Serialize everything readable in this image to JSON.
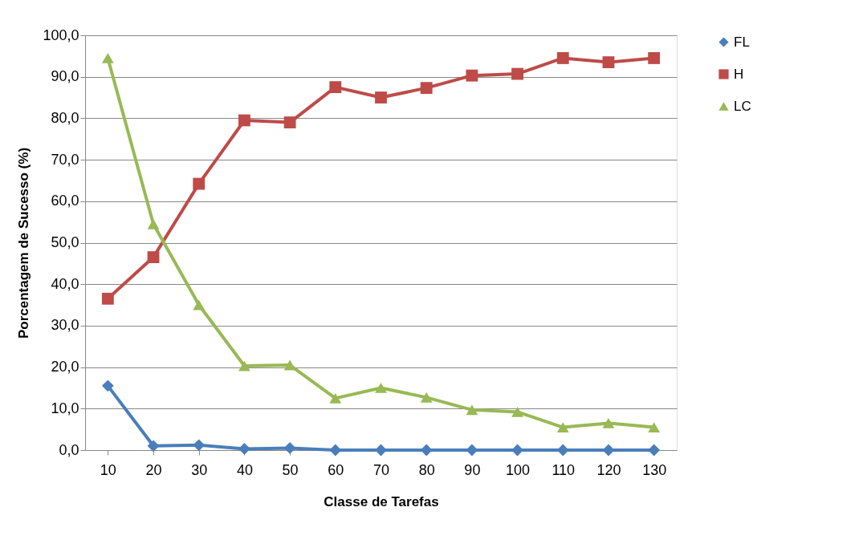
{
  "chart_data": {
    "type": "line",
    "xlabel": "Classe de Tarefas",
    "ylabel": "Porcentagem de Sucesso (%)",
    "categories": [
      "10",
      "20",
      "30",
      "40",
      "50",
      "60",
      "70",
      "80",
      "90",
      "100",
      "110",
      "120",
      "130"
    ],
    "series": [
      {
        "name": "FL",
        "color": "#4a7ebb",
        "marker": "diamond",
        "values": [
          15.5,
          1.0,
          1.2,
          0.3,
          0.5,
          0,
          0,
          0,
          0,
          0,
          0,
          0,
          0
        ]
      },
      {
        "name": "H",
        "color": "#be4b48",
        "marker": "square",
        "values": [
          36.5,
          46.5,
          64.2,
          79.5,
          79.0,
          87.5,
          85.0,
          87.3,
          90.3,
          90.7,
          94.5,
          93.5,
          94.5
        ]
      },
      {
        "name": "LC",
        "color": "#98b954",
        "marker": "triangle",
        "values": [
          94.5,
          54.5,
          35.0,
          20.3,
          20.5,
          12.5,
          15.0,
          12.7,
          9.7,
          9.2,
          5.5,
          6.5,
          5.5
        ]
      }
    ],
    "ylim": [
      0,
      100
    ],
    "yticks": [
      {
        "value": 0,
        "label": "0,0"
      },
      {
        "value": 10,
        "label": "10,0"
      },
      {
        "value": 20,
        "label": "20,0"
      },
      {
        "value": 30,
        "label": "30,0"
      },
      {
        "value": 40,
        "label": "40,0"
      },
      {
        "value": 50,
        "label": "50,0"
      },
      {
        "value": 60,
        "label": "60,0"
      },
      {
        "value": 70,
        "label": "70,0"
      },
      {
        "value": 80,
        "label": "80,0"
      },
      {
        "value": 90,
        "label": "90,0"
      },
      {
        "value": 100,
        "label": "100,0"
      }
    ],
    "grid": "y",
    "legend": "right",
    "line_style": "solid"
  }
}
